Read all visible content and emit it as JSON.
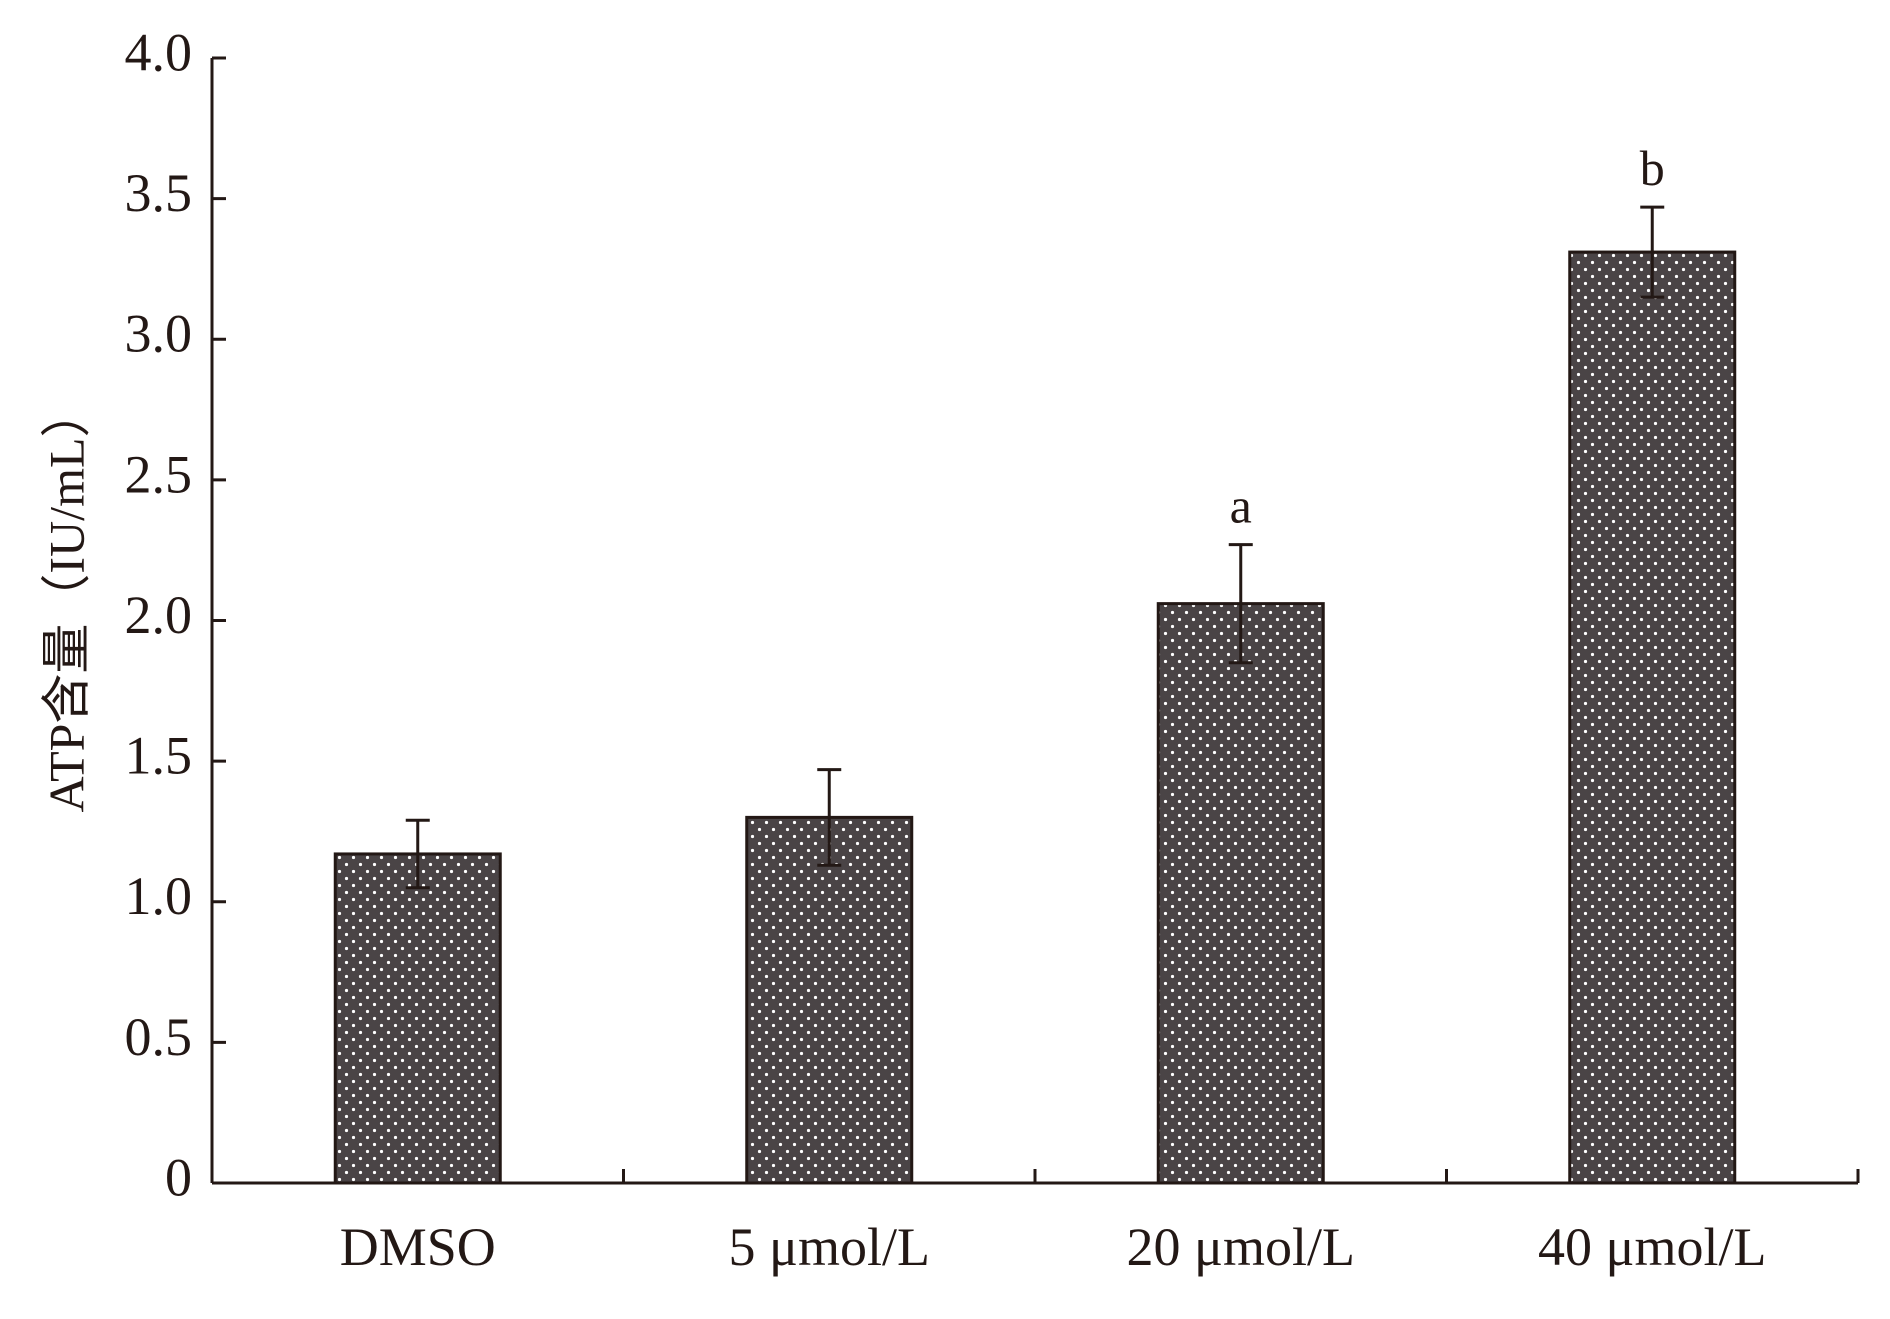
{
  "chart_data": {
    "type": "bar",
    "title": "",
    "xlabel": "",
    "ylabel": "ATP含量（IU/mL）",
    "categories": [
      "DMSO",
      "5 μmol/L",
      "20 μmol/L",
      "40 μmol/L"
    ],
    "values": [
      1.17,
      1.3,
      2.06,
      3.31
    ],
    "errors": [
      0.12,
      0.17,
      0.21,
      0.16
    ],
    "annotations": [
      "",
      "",
      "a",
      "b"
    ],
    "ylim": [
      0,
      4.0
    ],
    "yticks": [
      0,
      0.5,
      1.0,
      1.5,
      2.0,
      2.5,
      3.0,
      3.5,
      4.0
    ],
    "ytick_labels": [
      "0",
      "0.5",
      "1.0",
      "1.5",
      "2.0",
      "2.5",
      "3.0",
      "3.5",
      "4.0"
    ],
    "grid": false,
    "legend": "none",
    "colors": {
      "bar_fill": "#4a4446",
      "dot": "#ffffff",
      "stroke": "#231815"
    }
  }
}
